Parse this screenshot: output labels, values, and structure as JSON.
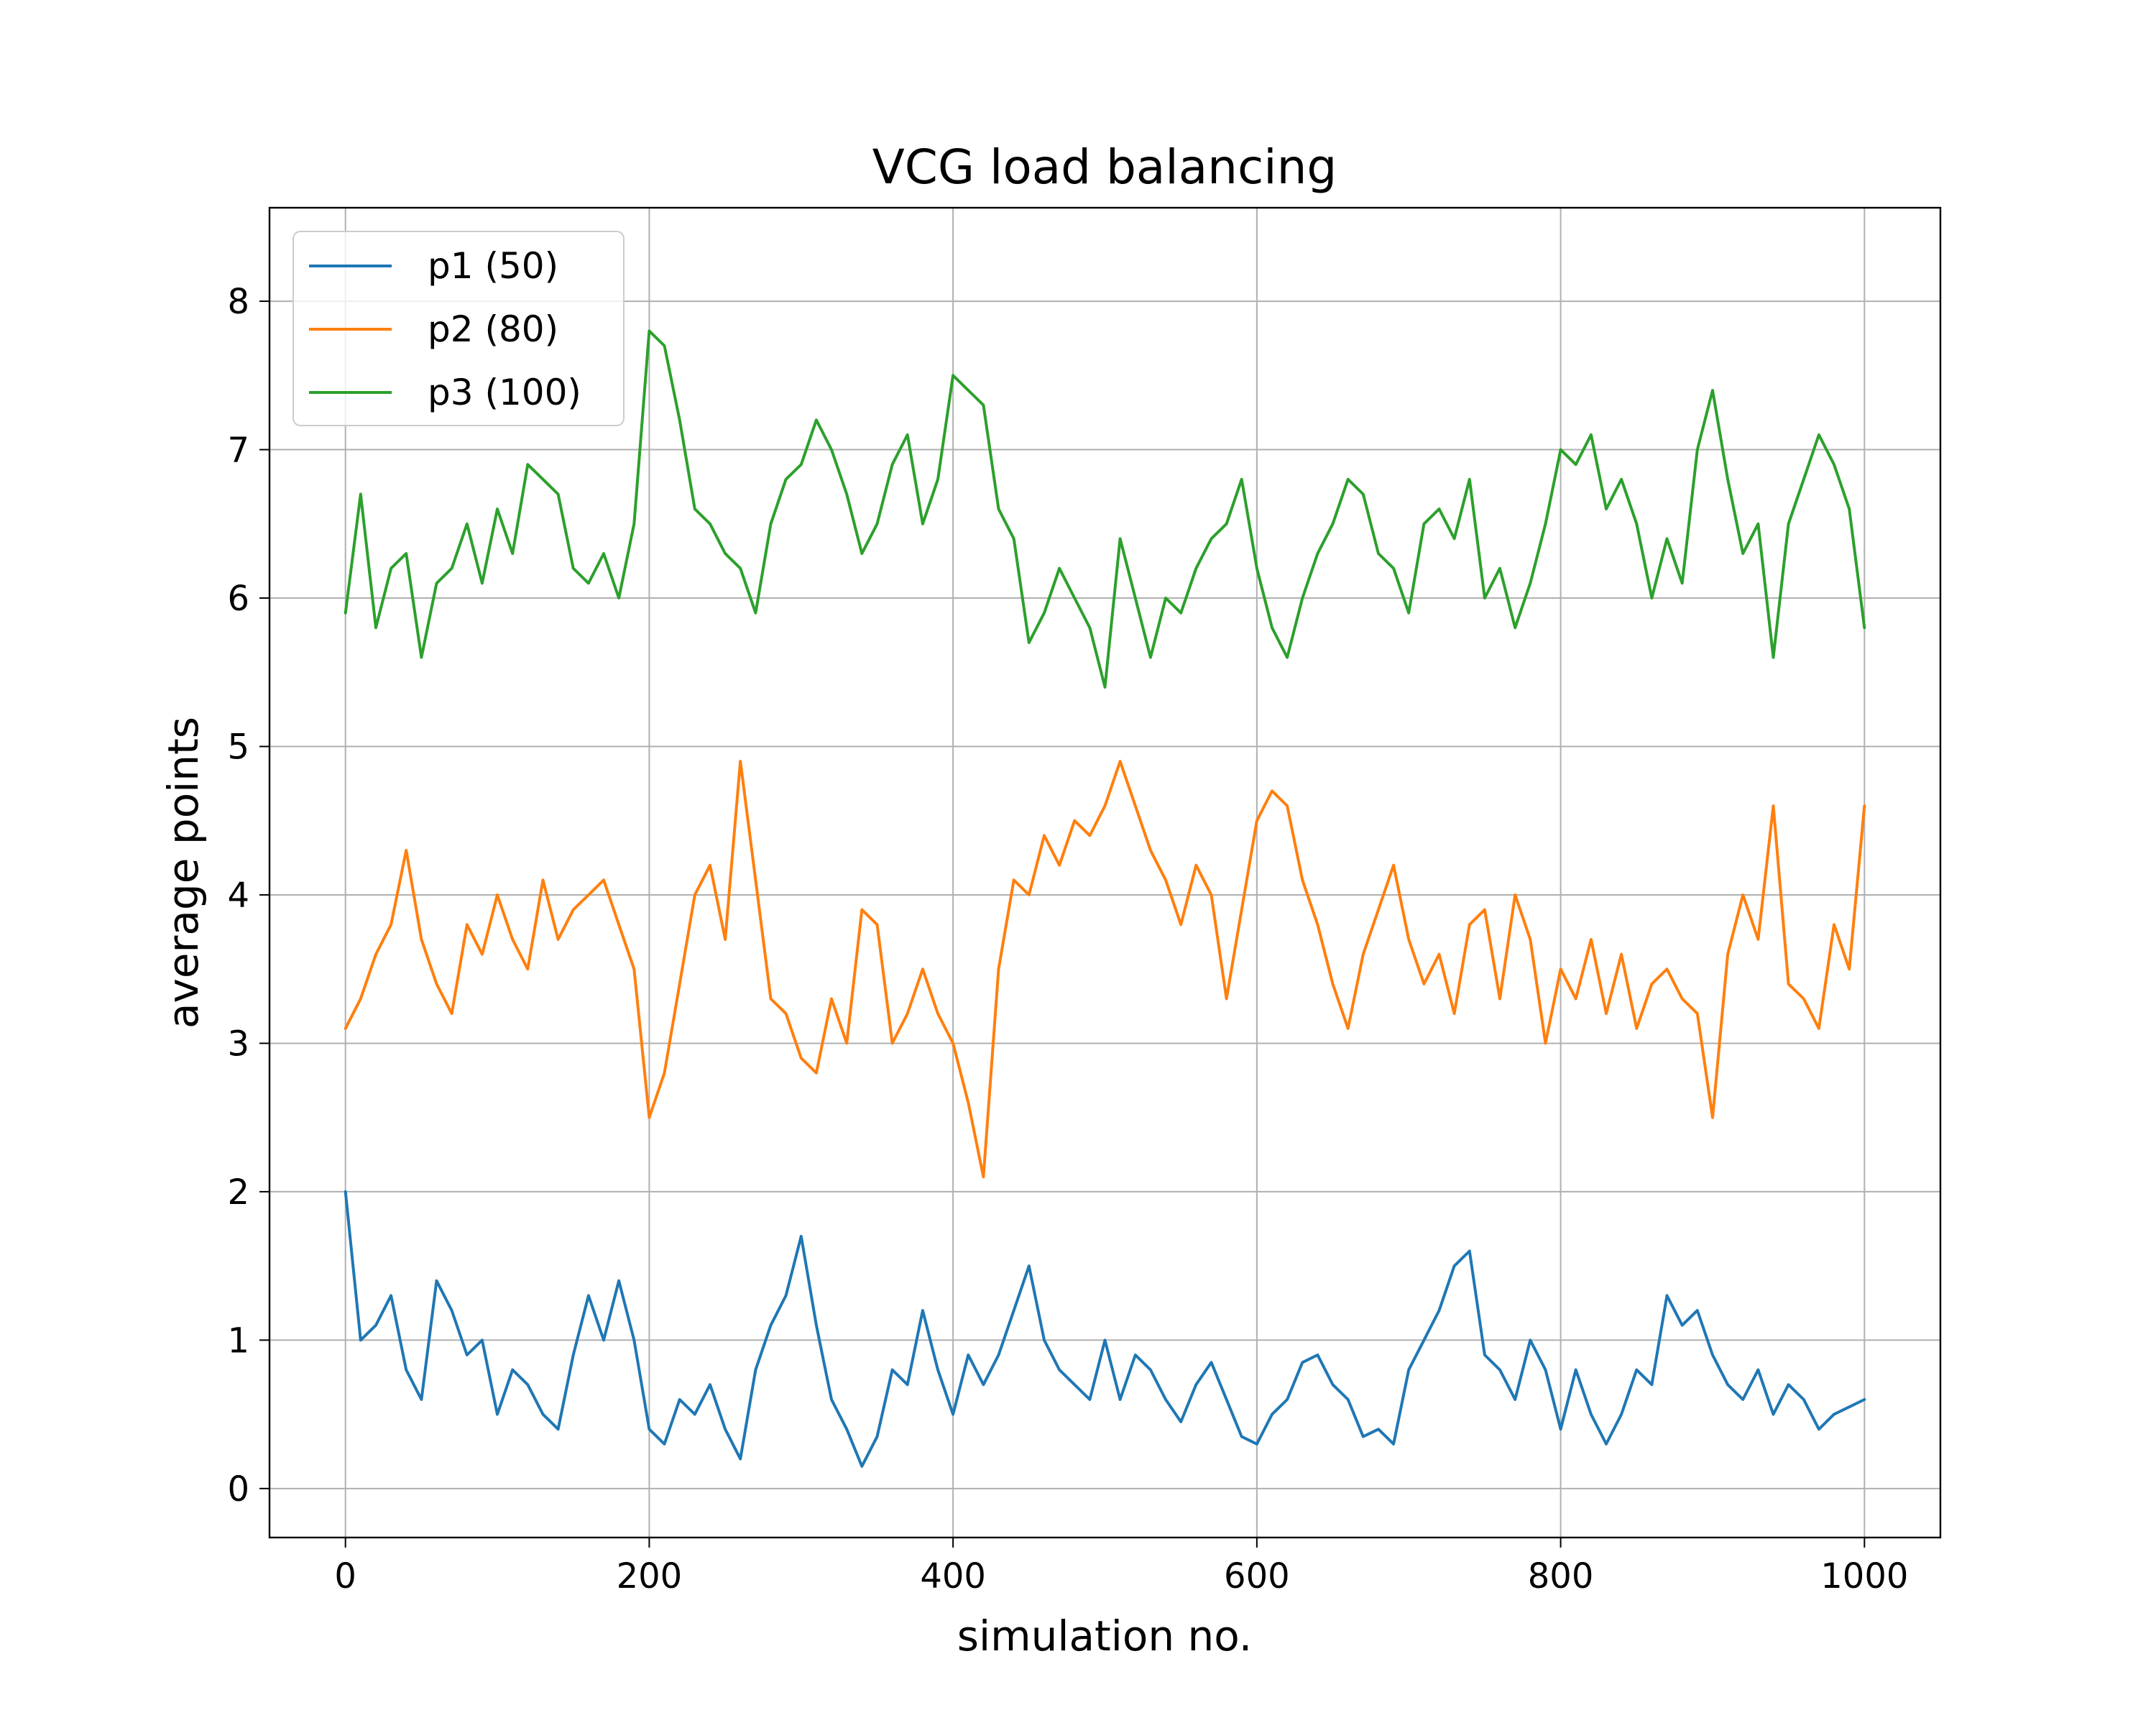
{
  "chart_data": {
    "type": "line",
    "title": "VCG load balancing",
    "xlabel": "simulation no.",
    "ylabel": "average points",
    "xlim": [
      -50,
      1050
    ],
    "ylim": [
      -0.33,
      8.63
    ],
    "x_ticks": [
      {
        "value": 0,
        "label": "0"
      },
      {
        "value": 200,
        "label": "200"
      },
      {
        "value": 400,
        "label": "400"
      },
      {
        "value": 600,
        "label": "600"
      },
      {
        "value": 800,
        "label": "800"
      },
      {
        "value": 1000,
        "label": "1000"
      }
    ],
    "y_ticks": [
      {
        "value": 0,
        "label": "0"
      },
      {
        "value": 1,
        "label": "1"
      },
      {
        "value": 2,
        "label": "2"
      },
      {
        "value": 3,
        "label": "3"
      },
      {
        "value": 4,
        "label": "4"
      },
      {
        "value": 5,
        "label": "5"
      },
      {
        "value": 6,
        "label": "6"
      },
      {
        "value": 7,
        "label": "7"
      },
      {
        "value": 8,
        "label": "8"
      }
    ],
    "grid": true,
    "legend_position": "top-left",
    "x": [
      0,
      10,
      20,
      30,
      40,
      50,
      60,
      70,
      80,
      90,
      100,
      110,
      120,
      130,
      140,
      150,
      160,
      170,
      180,
      190,
      200,
      210,
      220,
      230,
      240,
      250,
      260,
      270,
      280,
      290,
      300,
      310,
      320,
      330,
      340,
      350,
      360,
      370,
      380,
      390,
      400,
      410,
      420,
      430,
      440,
      450,
      460,
      470,
      480,
      490,
      500,
      510,
      520,
      530,
      540,
      550,
      560,
      570,
      580,
      590,
      600,
      610,
      620,
      630,
      640,
      650,
      660,
      670,
      680,
      690,
      700,
      710,
      720,
      730,
      740,
      750,
      760,
      770,
      780,
      790,
      800,
      810,
      820,
      830,
      840,
      850,
      860,
      870,
      880,
      890,
      900,
      910,
      920,
      930,
      940,
      950,
      960,
      970,
      980,
      990,
      1000
    ],
    "series": [
      {
        "name": "p1 (50)",
        "color": "#1f77b4",
        "values": [
          2.0,
          1.0,
          1.1,
          1.3,
          0.8,
          0.6,
          1.4,
          1.2,
          0.9,
          1.0,
          0.5,
          0.8,
          0.7,
          0.5,
          0.4,
          0.9,
          1.3,
          1.0,
          1.4,
          1.0,
          0.4,
          0.3,
          0.6,
          0.5,
          0.7,
          0.4,
          0.2,
          0.8,
          1.1,
          1.3,
          1.7,
          1.1,
          0.6,
          0.4,
          0.15,
          0.35,
          0.8,
          0.7,
          1.2,
          0.8,
          0.5,
          0.9,
          0.7,
          0.9,
          1.2,
          1.5,
          1.0,
          0.8,
          0.7,
          0.6,
          1.0,
          0.6,
          0.9,
          0.8,
          0.6,
          0.45,
          0.7,
          0.85,
          0.6,
          0.35,
          0.3,
          0.5,
          0.6,
          0.85,
          0.9,
          0.7,
          0.6,
          0.35,
          0.4,
          0.3,
          0.8,
          1.0,
          1.2,
          1.5,
          1.6,
          0.9,
          0.8,
          0.6,
          1.0,
          0.8,
          0.4,
          0.8,
          0.5,
          0.3,
          0.5,
          0.8,
          0.7,
          1.3,
          1.1,
          1.2,
          0.9,
          0.7,
          0.6,
          0.8,
          0.5,
          0.7,
          0.6,
          0.4,
          0.5,
          0.55,
          0.6
        ]
      },
      {
        "name": "p2 (80)",
        "color": "#ff7f0e",
        "values": [
          3.1,
          3.3,
          3.6,
          3.8,
          4.3,
          3.7,
          3.4,
          3.2,
          3.8,
          3.6,
          4.0,
          3.7,
          3.5,
          4.1,
          3.7,
          3.9,
          4.0,
          4.1,
          3.8,
          3.5,
          2.5,
          2.8,
          3.4,
          4.0,
          4.2,
          3.7,
          4.9,
          4.1,
          3.3,
          3.2,
          2.9,
          2.8,
          3.3,
          3.0,
          3.9,
          3.8,
          3.0,
          3.2,
          3.5,
          3.2,
          3.0,
          2.6,
          2.1,
          3.5,
          4.1,
          4.0,
          4.4,
          4.2,
          4.5,
          4.4,
          4.6,
          4.9,
          4.6,
          4.3,
          4.1,
          3.8,
          4.2,
          4.0,
          3.3,
          3.9,
          4.5,
          4.7,
          4.6,
          4.1,
          3.8,
          3.4,
          3.1,
          3.6,
          3.9,
          4.2,
          3.7,
          3.4,
          3.6,
          3.2,
          3.8,
          3.9,
          3.3,
          4.0,
          3.7,
          3.0,
          3.5,
          3.3,
          3.7,
          3.2,
          3.6,
          3.1,
          3.4,
          3.5,
          3.3,
          3.2,
          2.5,
          3.6,
          4.0,
          3.7,
          4.6,
          3.4,
          3.3,
          3.1,
          3.8,
          3.5,
          4.6
        ]
      },
      {
        "name": "p3 (100)",
        "color": "#2ca02c",
        "values": [
          5.9,
          6.7,
          5.8,
          6.2,
          6.3,
          5.6,
          6.1,
          6.2,
          6.5,
          6.1,
          6.6,
          6.3,
          6.9,
          6.8,
          6.7,
          6.2,
          6.1,
          6.3,
          6.0,
          6.5,
          7.8,
          7.7,
          7.2,
          6.6,
          6.5,
          6.3,
          6.2,
          5.9,
          6.5,
          6.8,
          6.9,
          7.2,
          7.0,
          6.7,
          6.3,
          6.5,
          6.9,
          7.1,
          6.5,
          6.8,
          7.5,
          7.4,
          7.3,
          6.6,
          6.4,
          5.7,
          5.9,
          6.2,
          6.0,
          5.8,
          5.4,
          6.4,
          6.0,
          5.6,
          6.0,
          5.9,
          6.2,
          6.4,
          6.5,
          6.8,
          6.2,
          5.8,
          5.6,
          6.0,
          6.3,
          6.5,
          6.8,
          6.7,
          6.3,
          6.2,
          5.9,
          6.5,
          6.6,
          6.4,
          6.8,
          6.0,
          6.2,
          5.8,
          6.1,
          6.5,
          7.0,
          6.9,
          7.1,
          6.6,
          6.8,
          6.5,
          6.0,
          6.4,
          6.1,
          7.0,
          7.4,
          6.8,
          6.3,
          6.5,
          5.6,
          6.5,
          6.8,
          7.1,
          6.9,
          6.6,
          5.8
        ]
      }
    ]
  }
}
